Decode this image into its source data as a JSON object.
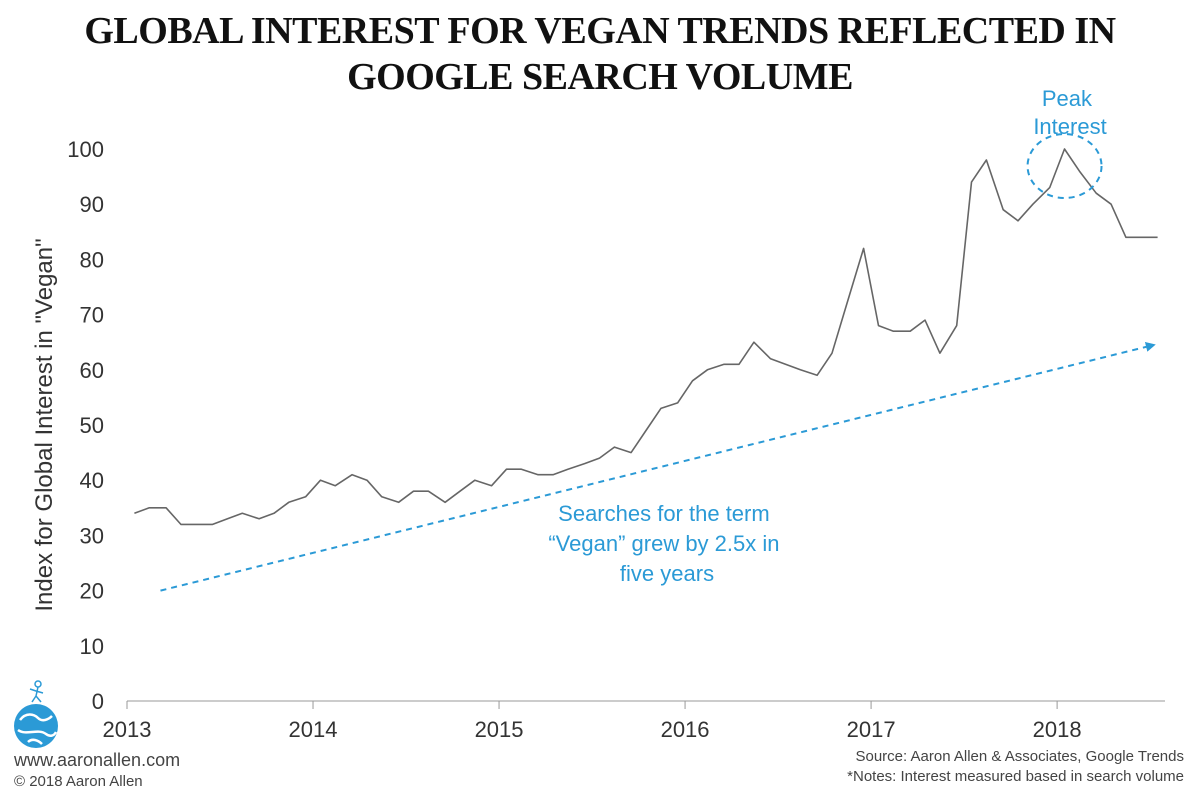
{
  "title_lines": [
    "GLOBAL INTEREST FOR VEGAN TRENDS REFLECTED IN",
    "GOOGLE SEARCH VOLUME"
  ],
  "colors": {
    "line": "#666666",
    "accent": "#2b9ad6",
    "axis": "#999999",
    "text": "#333333"
  },
  "chart_data": {
    "type": "line",
    "title": "GLOBAL INTEREST FOR VEGAN TRENDS REFLECTED IN GOOGLE SEARCH VOLUME",
    "ylabel": "Index for Global Interest in \"Vegan\"",
    "xlabel": "",
    "ylim": [
      0,
      100
    ],
    "yticks": [
      0,
      10,
      20,
      30,
      40,
      50,
      60,
      70,
      80,
      90,
      100
    ],
    "xlim": [
      2013.0,
      2018.58
    ],
    "xticks": [
      2013,
      2014,
      2015,
      2016,
      2017,
      2018
    ],
    "xtick_labels": [
      "2013",
      "2014",
      "2015",
      "2016",
      "2017",
      "2018"
    ],
    "grid": false,
    "series": [
      {
        "x": [
          2013.04,
          2013.12,
          2013.21,
          2013.29,
          2013.37,
          2013.46,
          2013.54,
          2013.62,
          2013.71,
          2013.79,
          2013.87,
          2013.96,
          2014.04,
          2014.12,
          2014.21,
          2014.29,
          2014.37,
          2014.46,
          2014.54,
          2014.62,
          2014.71,
          2014.79,
          2014.87,
          2014.96,
          2015.04,
          2015.12,
          2015.21,
          2015.29,
          2015.37,
          2015.46,
          2015.54,
          2015.62,
          2015.71,
          2015.79,
          2015.87,
          2015.96,
          2016.04,
          2016.12,
          2016.21,
          2016.29,
          2016.37,
          2016.46,
          2016.54,
          2016.62,
          2016.71,
          2016.79,
          2016.87,
          2016.96,
          2017.04,
          2017.12,
          2017.21,
          2017.29,
          2017.37,
          2017.46,
          2017.54,
          2017.62,
          2017.71,
          2017.79,
          2017.87,
          2017.96,
          2018.04,
          2018.12,
          2018.21,
          2018.29,
          2018.37,
          2018.46,
          2018.54
        ],
        "values": [
          34,
          35,
          35,
          32,
          32,
          32,
          33,
          34,
          33,
          34,
          36,
          37,
          40,
          39,
          41,
          40,
          37,
          36,
          38,
          38,
          36,
          38,
          40,
          39,
          42,
          42,
          41,
          41,
          42,
          43,
          44,
          46,
          45,
          49,
          53,
          54,
          58,
          60,
          61,
          61,
          65,
          62,
          61,
          60,
          59,
          63,
          72,
          82,
          68,
          67,
          67,
          69,
          63,
          68,
          94,
          98,
          89,
          87,
          90,
          93,
          100,
          96,
          92,
          90,
          84,
          84,
          84
        ]
      }
    ],
    "annotations": [
      {
        "lines": [
          "Searches for the term",
          "“Vegan” grew by 2.5x in",
          "five years"
        ]
      },
      {
        "lines": [
          "Peak",
          "Interest"
        ]
      }
    ],
    "trend_arrow": {
      "x": [
        2013.18,
        2018.52
      ],
      "y": [
        20,
        64.5
      ]
    },
    "peak_circle": {
      "x": 2018.04,
      "y": 100
    }
  },
  "footer": {
    "website": "www.aaronallen.com",
    "copyright": "© 2018 Aaron Allen",
    "source": "Source: Aaron Allen & Associates, Google Trends",
    "notes": "*Notes: Interest measured based in search volume"
  }
}
